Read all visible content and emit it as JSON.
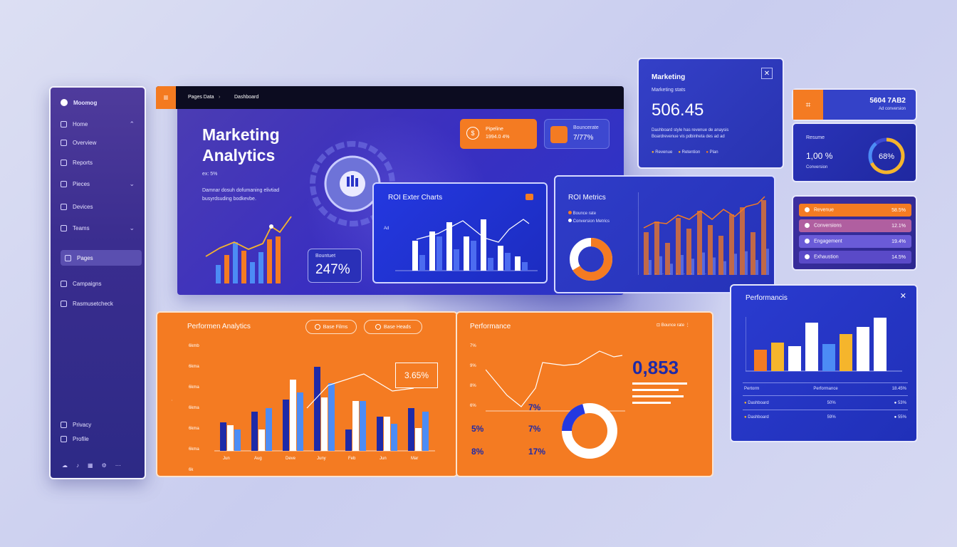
{
  "colors": {
    "orange": "#f47b22",
    "blue": "#2a35c8",
    "purple": "#3d2fa0",
    "white": "#ffffff",
    "light_blue": "#4c8cf5",
    "dark_blue": "#1e2aa8",
    "yellow": "#f5b52c"
  },
  "sidebar": {
    "brand": "Moomog",
    "items": [
      {
        "label": "Home",
        "icon": "home-icon"
      },
      {
        "label": "Overview",
        "icon": "grid-icon"
      },
      {
        "label": "Reports",
        "icon": "chart-icon"
      },
      {
        "label": "Pieces",
        "icon": "pie-icon"
      },
      {
        "label": "Devices",
        "icon": "device-icon"
      },
      {
        "label": "Teams",
        "icon": "shield-icon"
      },
      {
        "label": "Pages",
        "icon": "page-icon"
      },
      {
        "label": "Campaigns",
        "icon": "campaign-icon"
      },
      {
        "label": "Rasmusetcheck",
        "icon": "list-icon"
      }
    ],
    "bottom_items": [
      {
        "label": "Privacy",
        "icon": "lock-icon"
      },
      {
        "label": "Profile",
        "icon": "user-icon"
      }
    ]
  },
  "topbar": {
    "crumb1": "Pages Data",
    "crumb2": "Dashboard"
  },
  "hero": {
    "title_line1": "Marketing",
    "title_line2": "Analytics",
    "subtitle": "ex: 5%",
    "desc_line1": "Damnar dosuh dofumaning elivtiad",
    "desc_line2": "busyrdsuding bodkevbe.",
    "stat_label": "Bountuet",
    "stat_value": "247%"
  },
  "pill_orange": {
    "line1": "Pipeline",
    "line2": "1994.0 4%"
  },
  "pill_avatar": {
    "line1": "Bouncerate",
    "value": "7/77%"
  },
  "roi_exter": {
    "title": "ROI Exter Charts",
    "legend": "Ad"
  },
  "roi_metrics": {
    "title": "ROI Metrics",
    "legend1": "Bounce rate",
    "legend2": "Conversion Metrics"
  },
  "marketing_card": {
    "title": "Marketing",
    "subtitle": "Marketing stats",
    "value": "506.45",
    "desc_line1": "Dashboard style has revenue de anaysis",
    "desc_line2": "Boardrevenue vis pdbinheta des ad ad",
    "legend": [
      "Revenue",
      "Retention",
      "Plan"
    ]
  },
  "mini_top": {
    "value": "5604 7AB2",
    "sub": "Ad conversion"
  },
  "ring_card": {
    "label": "Resume",
    "value": "1,00 %",
    "sub": "Conversion",
    "ring_value": "68%"
  },
  "list_card": {
    "items": [
      {
        "label": "Revenue",
        "value": "58.5%"
      },
      {
        "label": "Conversions",
        "value": "12.1%"
      },
      {
        "label": "Engagement",
        "value": "19.4%"
      },
      {
        "label": "Exhaustion",
        "value": "14.5%"
      }
    ]
  },
  "perf_right": {
    "title": "Performancis",
    "table_headers": [
      "Pertorm",
      "Performance",
      "18.45%"
    ],
    "rows": [
      [
        "Dashboard",
        "50%",
        "53%"
      ],
      [
        "Dashboard",
        "59%",
        "55%"
      ]
    ]
  },
  "perf_analytics": {
    "title": "Performen Analytics",
    "btn1": "Base Films",
    "btn2": "Base Heads",
    "callout": "3.65%",
    "y_ticks": [
      "6kmb",
      "6kma",
      "6kma",
      "6kma",
      "6kma",
      "6kma",
      "6k"
    ],
    "x_ticks": [
      "Jun",
      "Aug",
      "Deve",
      "Juny",
      "Feb",
      "Jun",
      "Mar"
    ]
  },
  "perf_mid": {
    "title": "Performance",
    "legend": "Bounce rate",
    "big_value": "0,853",
    "left_values": [
      "7%",
      "9%",
      "8%",
      "6%"
    ],
    "pcts": [
      "7%",
      "7%",
      "17%"
    ],
    "lower_pcts": [
      "5%",
      "8%"
    ]
  },
  "chart_data": [
    {
      "type": "bar",
      "title": "ROI Exter Charts",
      "series": [
        {
          "name": "white",
          "values": [
            42,
            55,
            68,
            48,
            72,
            35,
            20
          ]
        },
        {
          "name": "blue",
          "values": [
            22,
            48,
            30,
            42,
            18,
            25,
            12
          ]
        }
      ]
    },
    {
      "type": "bar",
      "title": "ROI Metrics",
      "values": [
        60,
        75,
        45,
        80,
        65,
        90,
        70,
        55,
        85,
        95,
        60,
        105
      ]
    },
    {
      "type": "bar",
      "title": "Performen Analytics",
      "categories": [
        "Jun",
        "Aug",
        "Deve",
        "Juny",
        "Feb",
        "Jun",
        "Mar"
      ],
      "series": [
        {
          "name": "navy",
          "values": [
            40,
            55,
            72,
            118,
            30,
            48,
            60
          ]
        },
        {
          "name": "white",
          "values": [
            36,
            30,
            100,
            75,
            70,
            48,
            32
          ]
        },
        {
          "name": "light",
          "values": [
            30,
            60,
            82,
            95,
            70,
            38,
            55
          ]
        }
      ]
    },
    {
      "type": "bar",
      "title": "Performancis",
      "values": [
        30,
        40,
        35,
        68,
        38,
        52,
        62,
        75
      ]
    }
  ]
}
